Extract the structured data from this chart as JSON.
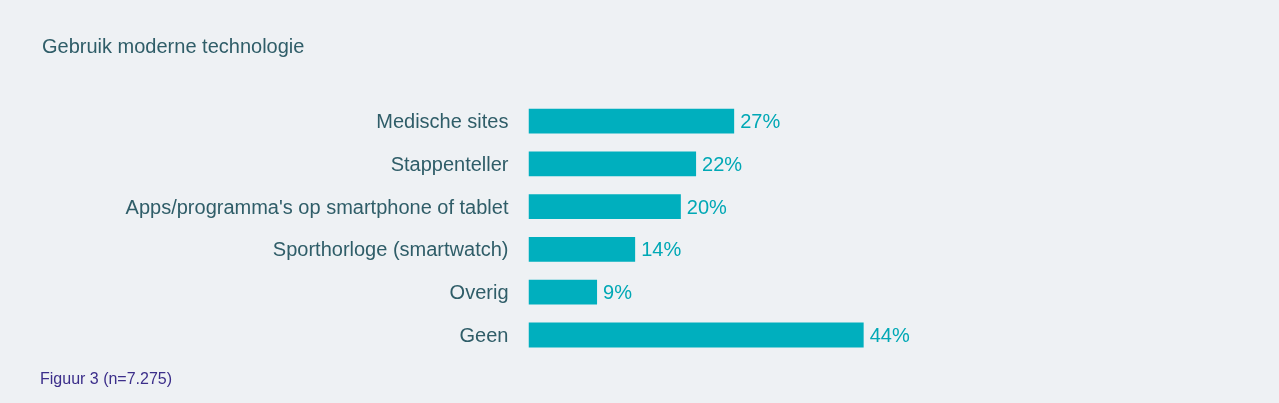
{
  "chart_data": {
    "type": "bar",
    "orientation": "horizontal",
    "title": "Gebruik moderne technologie",
    "categories": [
      "Medische sites",
      "Stappenteller",
      "Apps/programma's op smartphone of tablet",
      "Sporthorloge (smartwatch)",
      "Overig",
      "Geen"
    ],
    "values": [
      27,
      22,
      20,
      14,
      9,
      44
    ],
    "color": "#00afbe",
    "value_labels": [
      "27%",
      "22%",
      "20%",
      "14%",
      "9%",
      "44%"
    ],
    "tick_labels": "y",
    "grid": false,
    "annotations": [
      "Figuur 3 (n=7.275)"
    ]
  }
}
